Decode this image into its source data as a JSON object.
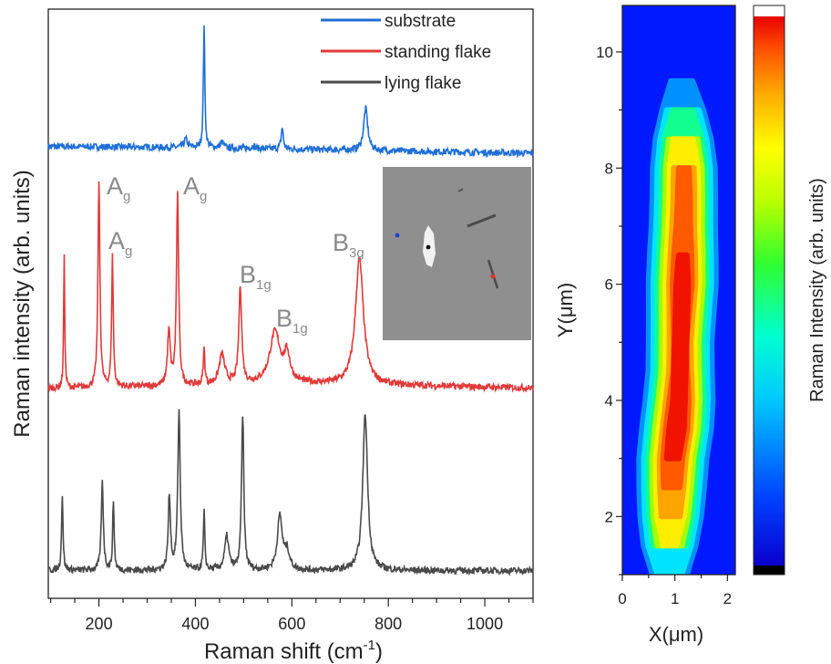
{
  "chart_data": [
    {
      "type": "line",
      "xlabel": "Raman shift (cm",
      "xlabel_sup": "-1",
      "xlabel_close": ")",
      "ylabel": "Raman intensity (arb. units)",
      "xlim": [
        95,
        1100
      ],
      "xticks": [
        200,
        400,
        600,
        800,
        1000
      ],
      "legend_position": "top-right",
      "series": [
        {
          "name": "substrate",
          "color": "#1f6fd6",
          "baseline": [
            [
              95,
              0.72
            ],
            [
              400,
              0.62
            ],
            [
              1100,
              0.15
            ]
          ],
          "peaks": [
            [
              380,
              0.7,
              4
            ],
            [
              418,
              10.3,
              1.8
            ],
            [
              455,
              0.5,
              4
            ],
            [
              520,
              0.25,
              4
            ],
            [
              580,
              1.8,
              2.5
            ],
            [
              753,
              3.5,
              5
            ]
          ]
        },
        {
          "name": "standing flake",
          "color": "#e03a3a",
          "baseline": [
            [
              95,
              0.15
            ],
            [
              600,
              0.55
            ],
            [
              1100,
              0.2
            ]
          ],
          "peaks": [
            [
              128,
              11,
              1.4
            ],
            [
              200,
              17.5,
              2.4
            ],
            [
              228,
              11,
              2.0
            ],
            [
              345,
              4.5,
              3.5
            ],
            [
              363,
              16,
              2.7
            ],
            [
              418,
              3,
              2.0
            ],
            [
              455,
              2.5,
              7
            ],
            [
              493,
              8.2,
              3.5
            ],
            [
              565,
              4.3,
              13
            ],
            [
              590,
              2.2,
              7
            ],
            [
              740,
              10.6,
              10
            ]
          ]
        },
        {
          "name": "lying flake",
          "color": "#4a4a4a",
          "baseline": [
            [
              95,
              0.05
            ],
            [
              1100,
              0.02
            ]
          ],
          "peaks": [
            [
              124,
              6.3,
              1.8
            ],
            [
              207,
              7.3,
              2.6
            ],
            [
              230,
              5.8,
              1.8
            ],
            [
              346,
              6.2,
              2.8
            ],
            [
              366,
              13.2,
              3.0
            ],
            [
              418,
              4.8,
              1.8
            ],
            [
              465,
              2.8,
              5
            ],
            [
              498,
              12.9,
              2.8
            ],
            [
              575,
              4.5,
              6
            ],
            [
              590,
              1.5,
              6
            ],
            [
              752,
              13.0,
              6
            ]
          ]
        }
      ],
      "annotations": [
        {
          "text": "A",
          "sub": "g"
        },
        {
          "text": "A",
          "sub": "g"
        },
        {
          "text": "A",
          "sub": "g"
        },
        {
          "text": "B",
          "sub": "1g"
        },
        {
          "text": "B",
          "sub": "1g"
        },
        {
          "text": "B",
          "sub": "3g"
        }
      ],
      "inset": {
        "background": "#8f8f8f",
        "markers": [
          "#1f3fd6",
          "#111111",
          "#e03030"
        ]
      }
    },
    {
      "type": "heatmap",
      "xlabel": "X(μm)",
      "ylabel": "Y(μm)",
      "xlim": [
        0,
        2.15
      ],
      "ylim": [
        1,
        10.8
      ],
      "xticks": [
        0,
        1,
        2
      ],
      "yticks": [
        2,
        4,
        6,
        8,
        10
      ],
      "colorbar_label": "Raman Intensity (arb. units)",
      "flake_profile": [
        [
          1.0,
          0.9,
          0.25
        ],
        [
          1.5,
          0.9,
          0.55
        ],
        [
          2.0,
          0.92,
          0.75
        ],
        [
          2.5,
          0.94,
          0.85
        ],
        [
          3.0,
          0.96,
          0.92
        ],
        [
          3.5,
          1.03,
          0.97
        ],
        [
          4.0,
          1.08,
          0.92
        ],
        [
          4.5,
          1.1,
          0.82
        ],
        [
          5.0,
          1.1,
          0.8
        ],
        [
          5.5,
          1.12,
          0.85
        ],
        [
          6.0,
          1.14,
          0.92
        ],
        [
          6.5,
          1.15,
          0.88
        ],
        [
          7.0,
          1.16,
          0.82
        ],
        [
          7.5,
          1.17,
          0.8
        ],
        [
          8.0,
          1.17,
          0.78
        ],
        [
          8.5,
          1.16,
          0.62
        ],
        [
          9.0,
          1.15,
          0.35
        ],
        [
          9.5,
          1.13,
          0.12
        ],
        [
          10.0,
          1.12,
          0.02
        ]
      ]
    }
  ]
}
